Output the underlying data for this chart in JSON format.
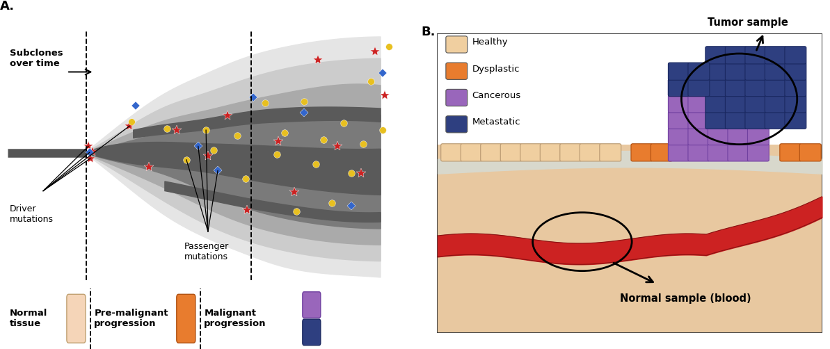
{
  "fig_width": 12.0,
  "fig_height": 4.86,
  "bg_color": "#ffffff",
  "panel_a_label": "A.",
  "panel_b_label": "B.",
  "colors": {
    "normal_tissue": "#f5d5b8",
    "pre_malignant": "#e87c2e",
    "malignant_purple": "#9966bb",
    "malignant_dark_blue": "#2e3f80",
    "healthy_cell": "#f0cfa0",
    "dysplastic_cell": "#e87c2e",
    "cancerous_cell": "#9966bb",
    "metastatic_cell": "#2e3f80",
    "blood_vessel": "#cc2222",
    "skin_bg": "#e8c8a0",
    "dark_gray": "#5a5a5a",
    "mid_gray": "#7a7a7a",
    "light_gray": "#aaaaaa",
    "lighter_gray": "#cccccc",
    "lightest_gray": "#e5e5e5",
    "red_star": "#cc2222",
    "blue_diamond": "#3366cc",
    "yellow_circle": "#e8c020",
    "arrow_color": "#111111"
  },
  "legend_items_b": [
    {
      "label": "Healthy",
      "color": "#f0cfa0"
    },
    {
      "label": "Dysplastic",
      "color": "#e87c2e"
    },
    {
      "label": "Cancerous",
      "color": "#9966bb"
    },
    {
      "label": "Metastatic",
      "color": "#2e3f80"
    }
  ]
}
